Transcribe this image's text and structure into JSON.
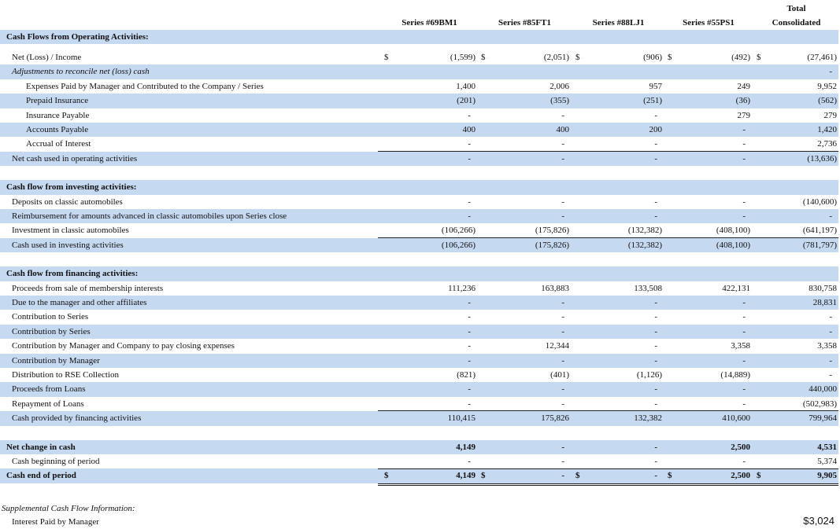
{
  "header": {
    "columns": [
      "Series #69BM1",
      "Series #85FT1",
      "Series #88LJ1",
      "Series #55PS1",
      "Total Consolidated"
    ]
  },
  "sections": [
    {
      "title": "Cash Flows from Operating Activities:",
      "rows": [
        {
          "label": "Net (Loss) / Income",
          "currency": "$",
          "values": [
            "(1,599)",
            "(2,051)",
            "(906)",
            "(492)",
            "(27,461)"
          ]
        },
        {
          "label": "Adjustments to reconcile net (loss) cash",
          "values": [
            null,
            null,
            null,
            null,
            "-"
          ]
        },
        {
          "label": "Expenses Paid by Manager and Contributed to the Company / Series",
          "values": [
            "1,400",
            "2,006",
            "957",
            "249",
            "9,952"
          ]
        },
        {
          "label": "Prepaid Insurance",
          "values": [
            "(201)",
            "(355)",
            "(251)",
            "(36)",
            "(562)"
          ]
        },
        {
          "label": "Insurance Payable",
          "values": [
            "-",
            "-",
            "-",
            "279",
            "279"
          ]
        },
        {
          "label": "Accounts Payable",
          "values": [
            "400",
            "400",
            "200",
            "-",
            "1,420"
          ]
        },
        {
          "label": "Accrual of Interest",
          "values": [
            "-",
            "-",
            "-",
            "-",
            "2,736"
          ]
        },
        {
          "label": "Net cash used in operating activities",
          "values": [
            "-",
            "-",
            "-",
            "-",
            "(13,636)"
          ]
        }
      ]
    },
    {
      "title": "Cash flow from investing activities:",
      "rows": [
        {
          "label": "Deposits on classic automobiles",
          "values": [
            "-",
            "-",
            "-",
            "-",
            "(140,600)"
          ]
        },
        {
          "label": "Reimbursement for amounts advanced in classic automobiles upon Series close",
          "values": [
            "-",
            "-",
            "-",
            "-",
            "-"
          ]
        },
        {
          "label": "Investment in classic automobiles",
          "values": [
            "(106,266)",
            "(175,826)",
            "(132,382)",
            "(408,100)",
            "(641,197)"
          ]
        },
        {
          "label": "Cash used in investing activities",
          "values": [
            "(106,266)",
            "(175,826)",
            "(132,382)",
            "(408,100)",
            "(781,797)"
          ]
        }
      ]
    },
    {
      "title": "Cash flow from financing activities:",
      "rows": [
        {
          "label": "Proceeds from sale of membership interests",
          "values": [
            "111,236",
            "163,883",
            "133,508",
            "422,131",
            "830,758"
          ]
        },
        {
          "label": "Due to the manager and other affiliates",
          "values": [
            "-",
            "-",
            "-",
            "-",
            "28,831"
          ]
        },
        {
          "label": "Contribution to Series",
          "values": [
            "-",
            "-",
            "-",
            "-",
            "-"
          ]
        },
        {
          "label": "Contribution by Series",
          "values": [
            "-",
            "-",
            "-",
            "-",
            "-"
          ]
        },
        {
          "label": "Contribution by Manager and Company to pay closing expenses",
          "values": [
            "-",
            "12,344",
            "-",
            "3,358",
            "3,358"
          ]
        },
        {
          "label": "Contribution by Manager",
          "values": [
            "-",
            "-",
            "-",
            "-",
            "-"
          ]
        },
        {
          "label": "Distribution to RSE Collection",
          "values": [
            "(821)",
            "(401)",
            "(1,126)",
            "(14,889)",
            "-"
          ]
        },
        {
          "label": "Proceeds from Loans",
          "values": [
            "-",
            "-",
            "-",
            "-",
            "440,000"
          ]
        },
        {
          "label": "Repayment of Loans",
          "values": [
            "-",
            "-",
            "-",
            "-",
            "(502,983)"
          ]
        },
        {
          "label": "Cash provided by financing activities",
          "values": [
            "110,415",
            "175,826",
            "132,382",
            "410,600",
            "799,964"
          ]
        }
      ]
    },
    {
      "rows": [
        {
          "label": "Net change in cash",
          "values": [
            "4,149",
            "-",
            "-",
            "2,500",
            "4,531"
          ]
        },
        {
          "label": "Cash beginning of period",
          "values": [
            "-",
            "-",
            "-",
            "-",
            "5,374"
          ]
        },
        {
          "label": "Cash end of period",
          "currency": "$",
          "values": [
            "4,149",
            "-",
            "-",
            "2,500",
            "9,905"
          ]
        }
      ]
    }
  ],
  "supplemental": {
    "title": "Supplemental Cash Flow Information:",
    "rows": [
      {
        "label": "Interest Paid by Manager",
        "value": "$3,024"
      }
    ]
  }
}
